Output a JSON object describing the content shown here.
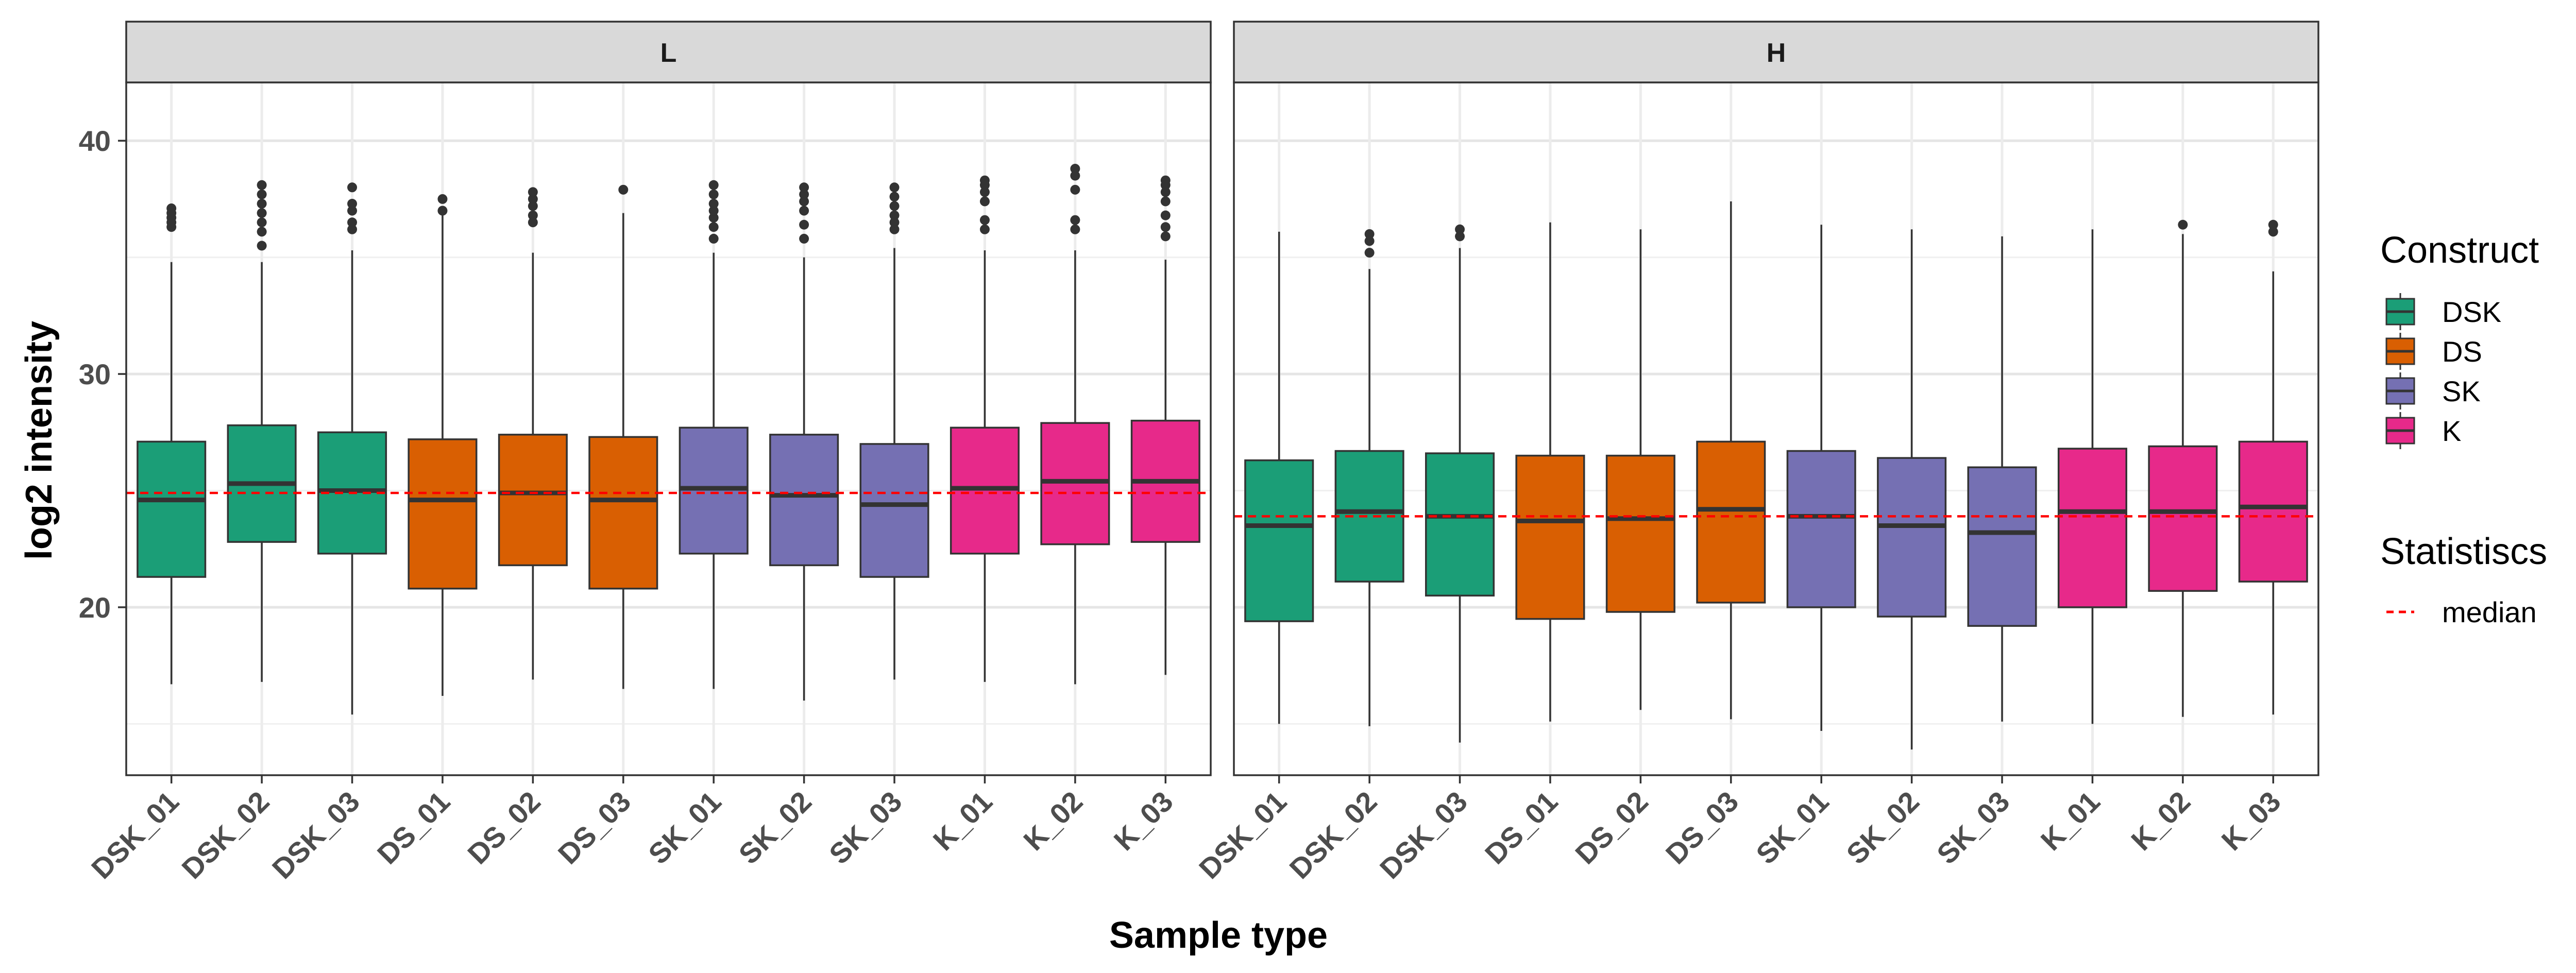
{
  "chart_data": {
    "type": "boxplot",
    "xlabel": "Sample type",
    "ylabel": "log2 intensity",
    "ylim": [
      12.8,
      42.5
    ],
    "y_ticks": [
      20,
      30,
      40
    ],
    "grid": true,
    "legend_placement": "right",
    "categories": [
      "DSK_01",
      "DSK_02",
      "DSK_03",
      "DS_01",
      "DS_02",
      "DS_03",
      "SK_01",
      "SK_02",
      "SK_03",
      "K_01",
      "K_02",
      "K_03"
    ],
    "category_construct": [
      "DSK",
      "DSK",
      "DSK",
      "DS",
      "DS",
      "DS",
      "SK",
      "SK",
      "SK",
      "K",
      "K",
      "K"
    ],
    "constructs": [
      {
        "name": "DSK",
        "color": "#1b9e77"
      },
      {
        "name": "DS",
        "color": "#d95f02"
      },
      {
        "name": "SK",
        "color": "#7570b3"
      },
      {
        "name": "K",
        "color": "#e7298a"
      }
    ],
    "legend": {
      "fill_title": "Construct",
      "stat_title": "Statistiscs",
      "stat_label": "median",
      "stat_color": "#ff0000"
    },
    "panels": [
      {
        "label": "L",
        "median_line": 24.9,
        "boxes": [
          {
            "whisker_low": 16.7,
            "q1": 21.3,
            "median": 24.6,
            "q3": 27.1,
            "whisker_high": 34.8,
            "outliers": [
              36.3,
              36.5,
              36.7,
              36.9,
              37.1
            ]
          },
          {
            "whisker_low": 16.8,
            "q1": 22.8,
            "median": 25.3,
            "q3": 27.8,
            "whisker_high": 34.8,
            "outliers": [
              35.5,
              36.1,
              36.5,
              36.9,
              37.3,
              37.7,
              38.1
            ]
          },
          {
            "whisker_low": 15.4,
            "q1": 22.3,
            "median": 25.0,
            "q3": 27.5,
            "whisker_high": 35.3,
            "outliers": [
              36.2,
              36.5,
              37.0,
              37.3,
              38.0
            ]
          },
          {
            "whisker_low": 16.2,
            "q1": 20.8,
            "median": 24.6,
            "q3": 27.2,
            "whisker_high": 36.8,
            "outliers": [
              37.0,
              37.5
            ]
          },
          {
            "whisker_low": 16.9,
            "q1": 21.8,
            "median": 24.9,
            "q3": 27.4,
            "whisker_high": 35.2,
            "outliers": [
              36.5,
              36.8,
              37.2,
              37.5,
              37.8
            ]
          },
          {
            "whisker_low": 16.5,
            "q1": 20.8,
            "median": 24.6,
            "q3": 27.3,
            "whisker_high": 36.9,
            "outliers": [
              37.9
            ]
          },
          {
            "whisker_low": 16.5,
            "q1": 22.3,
            "median": 25.1,
            "q3": 27.7,
            "whisker_high": 35.2,
            "outliers": [
              35.8,
              36.3,
              36.7,
              37.0,
              37.3,
              37.7,
              38.1
            ]
          },
          {
            "whisker_low": 16.0,
            "q1": 21.8,
            "median": 24.8,
            "q3": 27.4,
            "whisker_high": 35.0,
            "outliers": [
              35.8,
              36.4,
              37.0,
              37.4,
              37.7,
              38.0
            ]
          },
          {
            "whisker_low": 16.9,
            "q1": 21.3,
            "median": 24.4,
            "q3": 27.0,
            "whisker_high": 35.4,
            "outliers": [
              36.2,
              36.5,
              36.8,
              37.2,
              37.6,
              38.0
            ]
          },
          {
            "whisker_low": 16.8,
            "q1": 22.3,
            "median": 25.1,
            "q3": 27.7,
            "whisker_high": 35.3,
            "outliers": [
              36.2,
              36.6,
              37.4,
              37.8,
              38.1,
              38.3
            ]
          },
          {
            "whisker_low": 16.7,
            "q1": 22.7,
            "median": 25.4,
            "q3": 27.9,
            "whisker_high": 35.3,
            "outliers": [
              36.2,
              36.6,
              37.9,
              38.5,
              38.8
            ]
          },
          {
            "whisker_low": 17.1,
            "q1": 22.8,
            "median": 25.4,
            "q3": 28.0,
            "whisker_high": 34.9,
            "outliers": [
              35.9,
              36.3,
              36.8,
              37.4,
              37.8,
              38.1,
              38.3
            ]
          }
        ]
      },
      {
        "label": "H",
        "median_line": 23.9,
        "boxes": [
          {
            "whisker_low": 15.0,
            "q1": 19.4,
            "median": 23.5,
            "q3": 26.3,
            "whisker_high": 36.1,
            "outliers": []
          },
          {
            "whisker_low": 14.9,
            "q1": 21.1,
            "median": 24.1,
            "q3": 26.7,
            "whisker_high": 34.5,
            "outliers": [
              35.2,
              35.7,
              36.0
            ]
          },
          {
            "whisker_low": 14.2,
            "q1": 20.5,
            "median": 23.9,
            "q3": 26.6,
            "whisker_high": 35.4,
            "outliers": [
              35.9,
              36.2
            ]
          },
          {
            "whisker_low": 15.1,
            "q1": 19.5,
            "median": 23.7,
            "q3": 26.5,
            "whisker_high": 36.5,
            "outliers": []
          },
          {
            "whisker_low": 15.6,
            "q1": 19.8,
            "median": 23.8,
            "q3": 26.5,
            "whisker_high": 36.2,
            "outliers": []
          },
          {
            "whisker_low": 15.2,
            "q1": 20.2,
            "median": 24.2,
            "q3": 27.1,
            "whisker_high": 37.4,
            "outliers": []
          },
          {
            "whisker_low": 14.7,
            "q1": 20.0,
            "median": 23.9,
            "q3": 26.7,
            "whisker_high": 36.4,
            "outliers": []
          },
          {
            "whisker_low": 13.9,
            "q1": 19.6,
            "median": 23.5,
            "q3": 26.4,
            "whisker_high": 36.2,
            "outliers": []
          },
          {
            "whisker_low": 15.1,
            "q1": 19.2,
            "median": 23.2,
            "q3": 26.0,
            "whisker_high": 35.9,
            "outliers": []
          },
          {
            "whisker_low": 15.0,
            "q1": 20.0,
            "median": 24.1,
            "q3": 26.8,
            "whisker_high": 36.2,
            "outliers": []
          },
          {
            "whisker_low": 15.3,
            "q1": 20.7,
            "median": 24.1,
            "q3": 26.9,
            "whisker_high": 36.0,
            "outliers": [
              36.4
            ]
          },
          {
            "whisker_low": 15.4,
            "q1": 21.1,
            "median": 24.3,
            "q3": 27.1,
            "whisker_high": 34.4,
            "outliers": [
              36.1,
              36.4
            ]
          }
        ]
      }
    ]
  }
}
